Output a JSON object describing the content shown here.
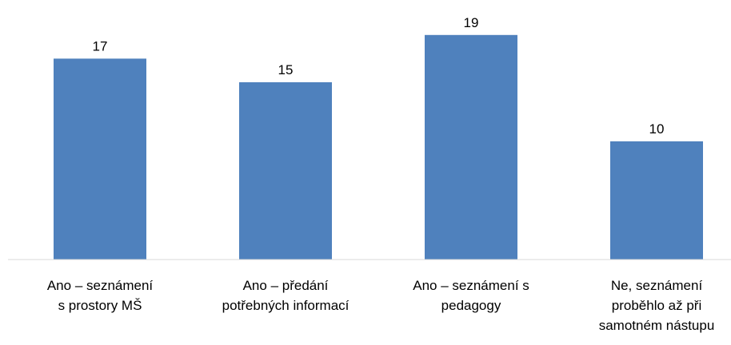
{
  "chart_data": {
    "type": "bar",
    "categories": [
      [
        "Ano – seznámení",
        "s prostory MŠ"
      ],
      [
        "Ano – předání",
        "potřebných informací"
      ],
      [
        "Ano – seznámení s",
        "pedagogy"
      ],
      [
        "Ne, seznámení",
        "proběhlo až při",
        "samotném nástupu"
      ]
    ],
    "values": [
      17,
      15,
      19,
      10
    ],
    "color": "#4f81bd",
    "ylim": [
      0,
      20
    ],
    "data_labels": true
  }
}
